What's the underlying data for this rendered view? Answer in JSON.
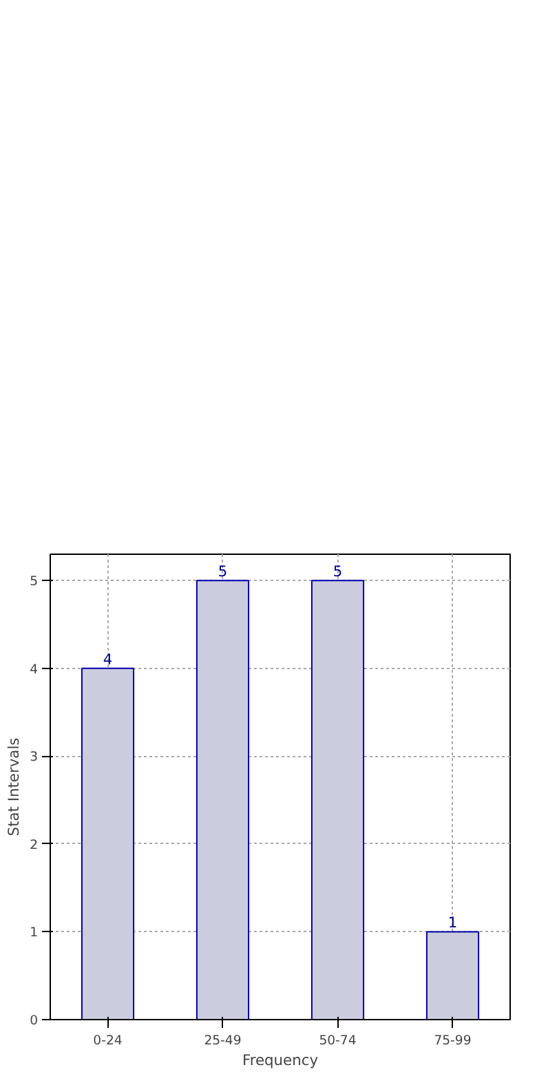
{
  "chart_data": {
    "type": "bar",
    "xlabel": "Frequency",
    "ylabel": "Stat Intervals",
    "categories": [
      "0-24",
      "25-49",
      "50-74",
      "75-99"
    ],
    "values": [
      4,
      5,
      5,
      1
    ],
    "color": "#ccccdf",
    "data_labels": true,
    "ylim": [
      0,
      5
    ],
    "yticks": [
      0,
      1,
      2,
      3,
      4,
      5
    ],
    "grid": true
  }
}
